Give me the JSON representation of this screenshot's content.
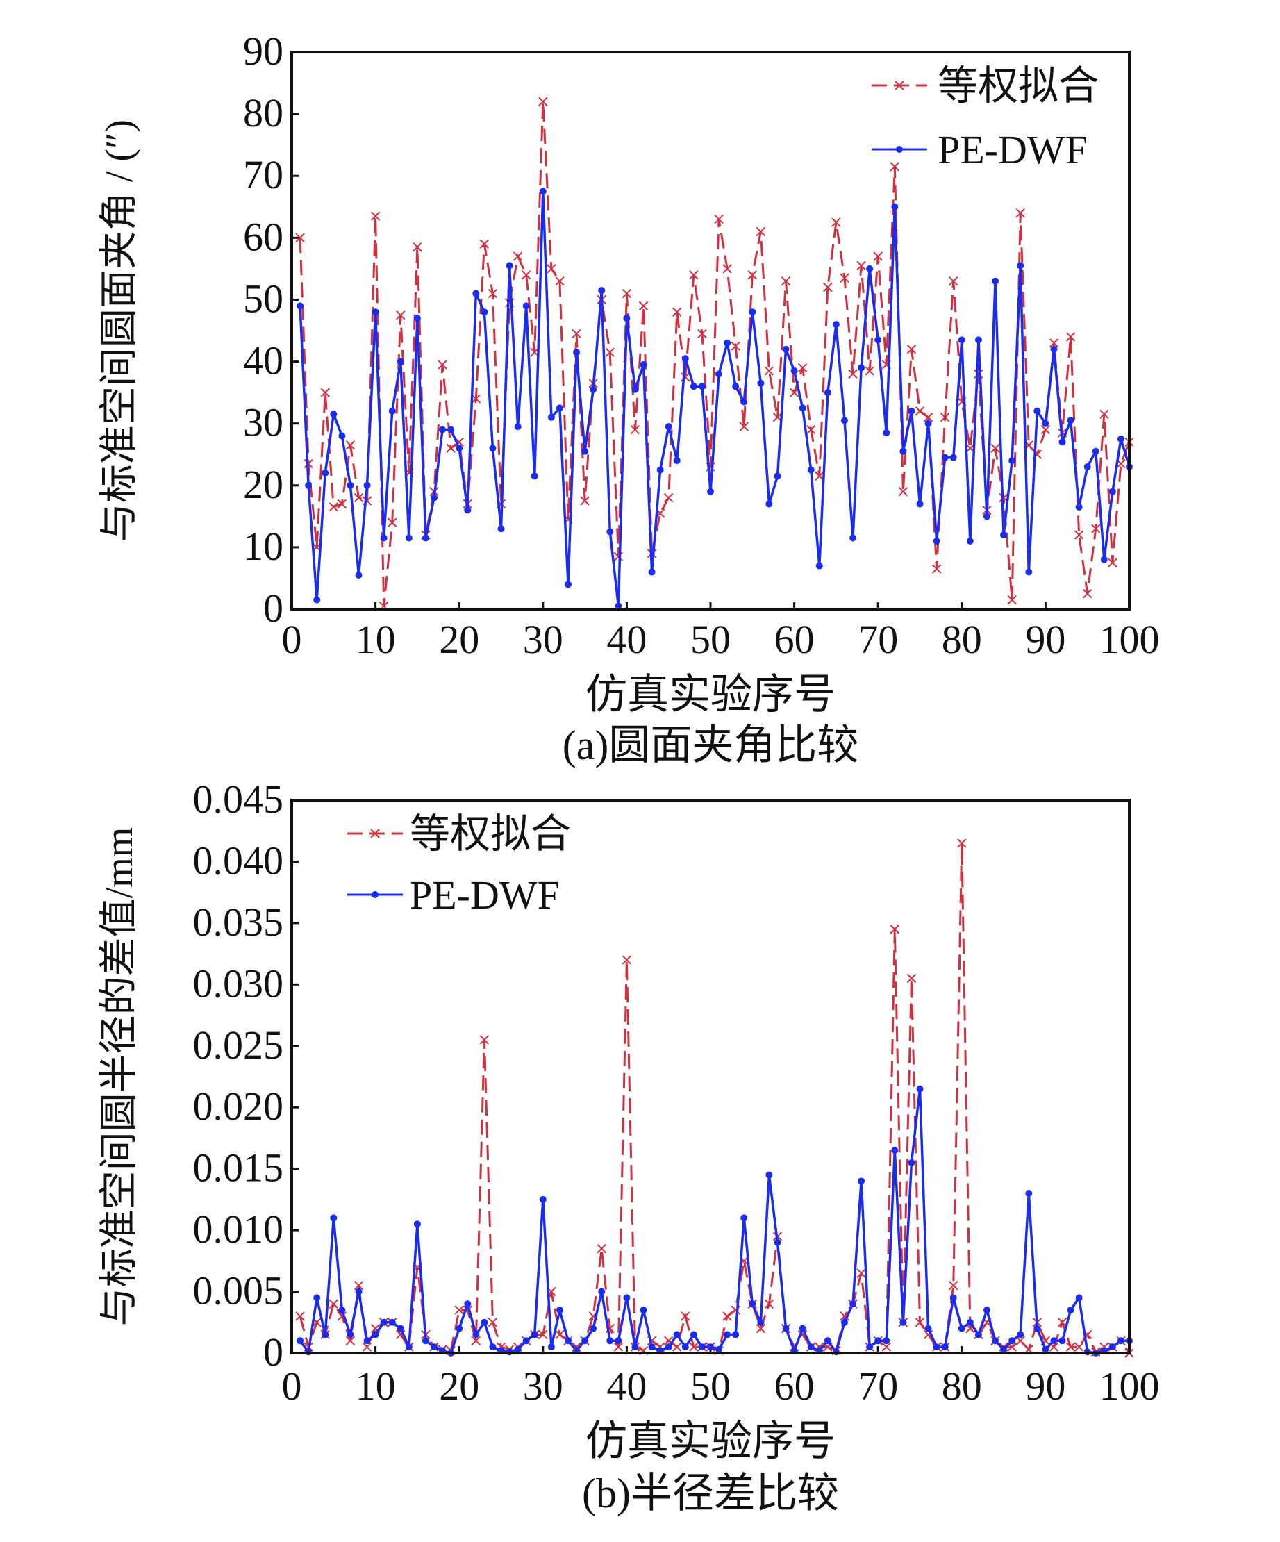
{
  "colors": {
    "equal": "#d2303f",
    "pedwf": "#1a2cf0",
    "axis": "#111111"
  },
  "chart_data": [
    {
      "type": "line",
      "title": "(a)圆面夹角比较",
      "xlabel": "仿真实验序号",
      "ylabel": "与标准空间圆面夹角 / (″)",
      "xlim": [
        0,
        100
      ],
      "ylim": [
        0,
        90
      ],
      "xticks": [
        "0",
        "10",
        "20",
        "30",
        "40",
        "50",
        "60",
        "70",
        "80",
        "90",
        "100"
      ],
      "yticks": [
        "0",
        "10",
        "20",
        "30",
        "40",
        "50",
        "60",
        "70",
        "80",
        "90"
      ],
      "legend_position": "top-right",
      "series": [
        {
          "name": "等权拟合",
          "style": "dashed-x",
          "values": [
            60,
            23.5,
            10,
            35,
            16.5,
            17,
            26.5,
            18,
            17.5,
            63.5,
            0.5,
            14,
            47.5,
            22,
            58.5,
            12,
            19,
            39.5,
            26,
            27,
            17,
            34,
            59,
            51,
            17,
            49.5,
            57,
            54,
            41.5,
            82,
            55,
            53,
            14.5,
            44.5,
            17.5,
            36.5,
            50,
            41.5,
            8.5,
            51,
            29,
            49,
            9,
            15.5,
            18,
            48,
            37.5,
            54,
            44.5,
            23,
            63,
            55,
            42.5,
            29.5,
            54,
            61,
            38.5,
            31,
            53,
            35,
            39,
            29,
            21.5,
            52,
            62.5,
            53.5,
            38,
            55.5,
            38.5,
            57,
            39.5,
            71.5,
            19,
            42,
            32,
            31,
            6.5,
            31,
            53,
            33.5,
            26,
            38,
            16,
            26,
            18,
            1.5,
            64,
            26.5,
            25,
            29,
            43,
            28.5,
            44,
            12,
            2.5,
            13,
            31.5,
            7.5,
            23.5,
            27
          ]
        },
        {
          "name": "PE-DWF",
          "style": "solid-dot",
          "values": [
            49,
            20,
            1.5,
            22,
            31.5,
            28,
            20,
            5.5,
            20,
            48,
            11.5,
            32,
            40,
            11.5,
            47,
            11.5,
            18,
            29,
            29,
            26,
            16,
            51,
            48,
            26,
            13,
            55.5,
            29.5,
            49,
            21.5,
            67.5,
            31,
            32.5,
            4,
            41.5,
            25.5,
            35.5,
            51.5,
            12.5,
            0.5,
            47,
            35.5,
            39.5,
            6,
            22.5,
            29.5,
            24,
            40.5,
            36,
            36,
            19,
            38,
            43,
            36,
            33.5,
            48,
            36.5,
            17,
            21.5,
            42,
            38.5,
            32.5,
            22.5,
            7,
            35,
            46,
            30.5,
            11.5,
            39,
            55,
            43.5,
            28.5,
            65,
            25.5,
            32,
            17,
            30,
            11,
            24.5,
            24.5,
            43.5,
            11,
            43.5,
            15,
            53,
            12,
            24,
            55.5,
            6,
            32,
            30,
            42,
            27,
            30.5,
            16.5,
            23,
            25.5,
            8,
            19,
            27.5,
            23
          ]
        }
      ]
    },
    {
      "type": "line",
      "title": "(b)半径差比较",
      "xlabel": "仿真实验序号",
      "ylabel": "与标准空间圆半径的差值/mm",
      "xlim": [
        0,
        100
      ],
      "ylim": [
        0,
        0.045
      ],
      "xticks": [
        "0",
        "10",
        "20",
        "30",
        "40",
        "50",
        "60",
        "70",
        "80",
        "90",
        "100"
      ],
      "yticks": [
        "0",
        "0.005",
        "0.010",
        "0.015",
        "0.020",
        "0.025",
        "0.030",
        "0.035",
        "0.040",
        "0.045"
      ],
      "legend_position": "top-left",
      "series": [
        {
          "name": "等权拟合",
          "style": "dashed-x",
          "values": [
            0.003,
            0.0005,
            0.0025,
            0.0015,
            0.004,
            0.003,
            0.001,
            0.0055,
            0.0005,
            0.002,
            0.0025,
            0.0025,
            0.0015,
            0.0005,
            0.007,
            0.0015,
            0.0005,
            0.0003,
            0.0002,
            0.0035,
            0.0035,
            0.001,
            0.0255,
            0.0025,
            0.0005,
            0.0003,
            0.0005,
            0.001,
            0.0015,
            0.0015,
            0.005,
            0.0015,
            0.001,
            0.0005,
            0.001,
            0.003,
            0.0085,
            0.002,
            0.0005,
            0.032,
            0.0005,
            0.0002,
            0.001,
            0.0005,
            0.001,
            0.0005,
            0.003,
            0.0005,
            0.0005,
            0.0005,
            0.0002,
            0.003,
            0.0035,
            0.0075,
            0.004,
            0.002,
            0.004,
            0.0095,
            0.002,
            0.0005,
            0.0015,
            0.0005,
            0.0005,
            0.0005,
            0.0002,
            0.003,
            0.004,
            0.0065,
            0.0005,
            0.001,
            0.0005,
            0.0345,
            0.0025,
            0.0305,
            0.0025,
            0.0015,
            0.0005,
            0.0005,
            0.0055,
            0.0415,
            0.002,
            0.0015,
            0.0025,
            0.001,
            0.0005,
            0.0005,
            0.001,
            0.0003,
            0.0025,
            0.001,
            0.0005,
            0.0025,
            0.0005,
            0.0005,
            0.0015,
            0.0001,
            0.0005,
            0.0005,
            0.001,
            0
          ]
        },
        {
          "name": "PE-DWF",
          "style": "solid-dot",
          "values": [
            0.001,
            0.0001,
            0.0045,
            0.0015,
            0.011,
            0.0035,
            0.0015,
            0.005,
            0.001,
            0.0015,
            0.0025,
            0.0025,
            0.002,
            0.0005,
            0.0105,
            0.001,
            0.0005,
            0.0002,
            0,
            0.002,
            0.004,
            0.0015,
            0.0025,
            0.0005,
            0.0002,
            0.0001,
            0.0003,
            0.001,
            0.0015,
            0.0125,
            0.0005,
            0.0035,
            0.001,
            0.0002,
            0.001,
            0.002,
            0.005,
            0.001,
            0.001,
            0.0045,
            0.0005,
            0.0035,
            0.0005,
            0.0002,
            0.0005,
            0.0015,
            0.0005,
            0.0015,
            0.0005,
            0.0005,
            0.0003,
            0.0015,
            0.0015,
            0.011,
            0.004,
            0.0025,
            0.0145,
            0.009,
            0.002,
            0.0002,
            0.002,
            0.0005,
            0.0002,
            0.001,
            0.0001,
            0.0025,
            0.004,
            0.014,
            0.0005,
            0.001,
            0.001,
            0.0165,
            0.0025,
            0.0155,
            0.0215,
            0.002,
            0.0005,
            0.0005,
            0.0045,
            0.002,
            0.0025,
            0.0015,
            0.0035,
            0.001,
            0.0003,
            0.001,
            0.0015,
            0.013,
            0.002,
            0.0003,
            0.001,
            0.001,
            0.0035,
            0.0045,
            0.0001,
            0,
            0.0002,
            0.0005,
            0.001,
            0.001
          ]
        }
      ]
    }
  ]
}
